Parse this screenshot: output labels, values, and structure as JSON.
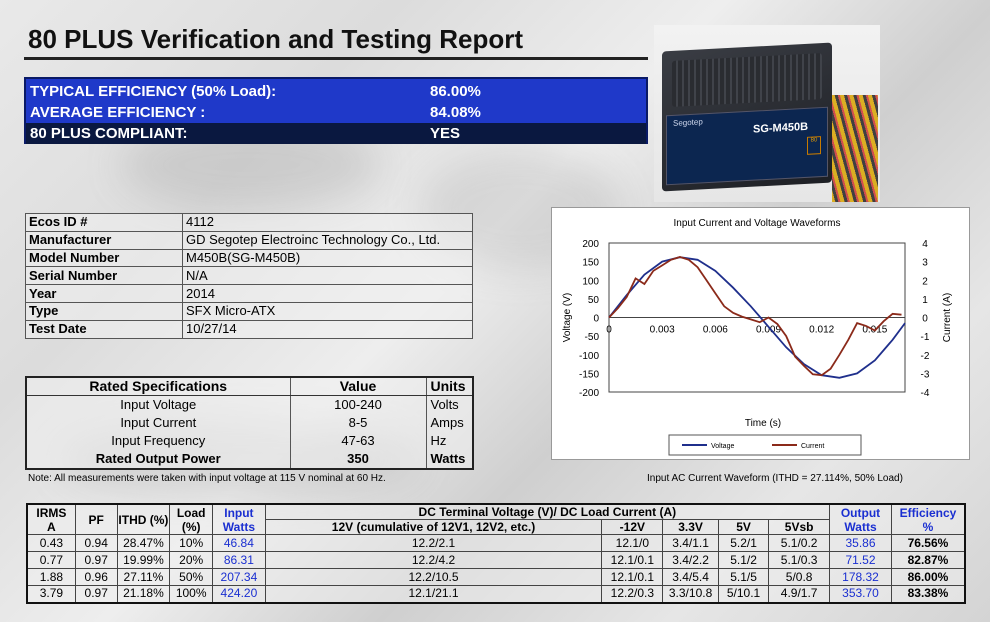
{
  "header": {
    "title": "80 PLUS Verification and Testing Report"
  },
  "summary": [
    {
      "label": "TYPICAL EFFICIENCY (50% Load):",
      "value": "86.00%"
    },
    {
      "label": "AVERAGE EFFICIENCY :",
      "value": "84.08%"
    },
    {
      "label": "80 PLUS COMPLIANT:",
      "value": "YES"
    }
  ],
  "product_image": {
    "brand": "Segotep",
    "model": "SG-M450B",
    "badge": "80"
  },
  "info": [
    {
      "key": "Ecos ID #",
      "value": "4112"
    },
    {
      "key": "Manufacturer",
      "value": "GD Segotep Electroinc Technology Co., Ltd."
    },
    {
      "key": "Model Number",
      "value": "M450B(SG-M450B)"
    },
    {
      "key": "Serial Number",
      "value": "N/A"
    },
    {
      "key": "Year",
      "value": "2014"
    },
    {
      "key": "Type",
      "value": "SFX Micro-ATX"
    },
    {
      "key": "Test Date",
      "value": "10/27/14"
    }
  ],
  "rated": {
    "headers": [
      "Rated Specifications",
      "Value",
      "Units"
    ],
    "rows": [
      [
        "Input Voltage",
        "100-240",
        "Volts"
      ],
      [
        "Input Current",
        "8-5",
        "Amps"
      ],
      [
        "Input Frequency",
        "47-63",
        "Hz"
      ],
      [
        "Rated Output Power",
        "350",
        "Watts"
      ]
    ]
  },
  "note": "Note: All measurements were taken with input voltage at 115 V nominal at 60 Hz.",
  "chart_caption": "Input AC Current Waveform (ITHD = 27.114%, 50% Load)",
  "chart_data": {
    "type": "line",
    "title": "Input Current and Voltage Waveforms",
    "xlabel": "Time (s)",
    "ylabel": "Voltage (V)",
    "y2label": "Current (A)",
    "xlim": [
      0,
      0.0167
    ],
    "ylim": [
      -200,
      200
    ],
    "y2lim": [
      -4,
      4
    ],
    "xticks": [
      "0",
      "0.003",
      "0.006",
      "0.009",
      "0.012",
      "0.015"
    ],
    "yticks": [
      "200",
      "150",
      "100",
      "50",
      "0",
      "-50",
      "-100",
      "-150",
      "-200"
    ],
    "y2ticks": [
      "4",
      "3",
      "2",
      "1",
      "0",
      "-1",
      "-2",
      "-3",
      "-4"
    ],
    "legend_position": "bottom",
    "series": [
      {
        "name": "Voltage",
        "axis": "left",
        "color": "#1f2f8c",
        "x": [
          0,
          0.001,
          0.002,
          0.003,
          0.004,
          0.005,
          0.006,
          0.007,
          0.008,
          0.009,
          0.01,
          0.011,
          0.012,
          0.013,
          0.014,
          0.015,
          0.016,
          0.0167
        ],
        "y": [
          0,
          60,
          115,
          150,
          162,
          155,
          125,
          80,
          30,
          -25,
          -80,
          -125,
          -155,
          -162,
          -150,
          -115,
          -60,
          -15
        ]
      },
      {
        "name": "Current",
        "axis": "right",
        "color": "#8b2a1a",
        "x": [
          0,
          0.0005,
          0.001,
          0.0015,
          0.002,
          0.0025,
          0.003,
          0.0035,
          0.004,
          0.0045,
          0.005,
          0.0055,
          0.006,
          0.0065,
          0.007,
          0.0075,
          0.008,
          0.0085,
          0.009,
          0.0095,
          0.01,
          0.0105,
          0.011,
          0.0115,
          0.012,
          0.0125,
          0.013,
          0.0135,
          0.014,
          0.0145,
          0.015,
          0.0155,
          0.016,
          0.0165
        ],
        "y": [
          0,
          0.5,
          1.1,
          2.1,
          1.8,
          2.5,
          2.8,
          3.1,
          3.25,
          3.1,
          2.7,
          2.0,
          1.3,
          0.6,
          0.25,
          0.05,
          -0.1,
          -0.25,
          0,
          -0.35,
          -1.0,
          -2.1,
          -2.6,
          -3.05,
          -3.1,
          -2.75,
          -2.0,
          -1.2,
          -0.3,
          -0.45,
          -0.7,
          -0.2,
          0.2,
          0.15
        ]
      }
    ]
  },
  "main_table": {
    "head1": {
      "irms": "IRMS",
      "irms_unit": "A",
      "pf": "PF",
      "ithd": "ITHD (%)",
      "load": "Load",
      "load_unit": "(%)",
      "input": "Input",
      "input_unit": "Watts",
      "dc_group": "DC Terminal Voltage (V)/ DC Load Current (A)",
      "output": "Output",
      "output_unit": "Watts",
      "efficiency": "Efficiency",
      "efficiency_unit": "%"
    },
    "dc_cols": [
      "12V (cumulative of 12V1, 12V2, etc.)",
      "-12V",
      "3.3V",
      "5V",
      "5Vsb"
    ],
    "rows": [
      [
        "0.43",
        "0.94",
        "28.47%",
        "10%",
        "46.84",
        "12.2/2.1",
        "12.1/0",
        "3.4/1.1",
        "5.2/1",
        "5.1/0.2",
        "35.86",
        "76.56%"
      ],
      [
        "0.77",
        "0.97",
        "19.99%",
        "20%",
        "86.31",
        "12.2/4.2",
        "12.1/0.1",
        "3.4/2.2",
        "5.1/2",
        "5.1/0.3",
        "71.52",
        "82.87%"
      ],
      [
        "1.88",
        "0.96",
        "27.11%",
        "50%",
        "207.34",
        "12.2/10.5",
        "12.1/0.1",
        "3.4/5.4",
        "5.1/5",
        "5/0.8",
        "178.32",
        "86.00%"
      ],
      [
        "3.79",
        "0.97",
        "21.18%",
        "100%",
        "424.20",
        "12.1/21.1",
        "12.2/0.3",
        "3.3/10.8",
        "5/10.1",
        "4.9/1.7",
        "353.70",
        "83.38%"
      ]
    ]
  }
}
